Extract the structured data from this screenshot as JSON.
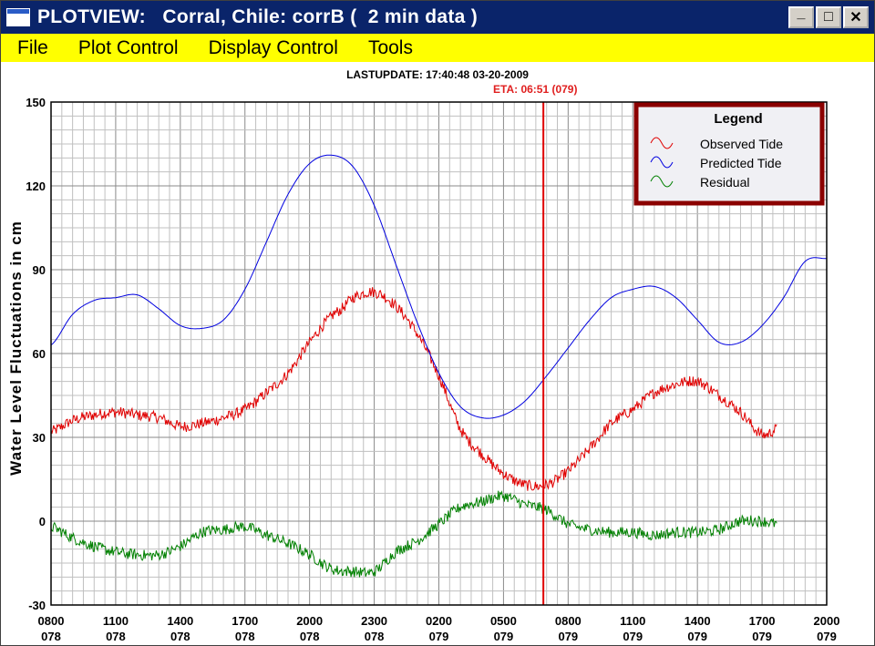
{
  "window": {
    "title": "PLOTVIEW:   Corral, Chile: corrB (  2 min data )",
    "minimize_glyph": "_",
    "maximize_glyph": "□",
    "close_glyph": "✕"
  },
  "menu": {
    "items": [
      "File",
      "Plot Control",
      "Display Control",
      "Tools"
    ]
  },
  "header": {
    "lastupdate": "LASTUPDATE: 17:40:48  03-20-2009",
    "eta": "ETA: 06:51 (079)"
  },
  "colors": {
    "observed": "#e00000",
    "predicted": "#0000e0",
    "residual": "#008000",
    "eta_line": "#e00000",
    "legend_border": "#8b0000",
    "legend_bg": "#f0f0f4"
  },
  "chart_data": {
    "type": "line",
    "ylabel": "Water Level Fluctuations in cm",
    "ylim": [
      -30,
      150
    ],
    "y_ticks": [
      -30,
      0,
      30,
      60,
      90,
      120,
      150
    ],
    "xlim": [
      0,
      36
    ],
    "x_ticks": [
      {
        "x": 0,
        "time": "0800",
        "day": "078"
      },
      {
        "x": 3,
        "time": "1100",
        "day": "078"
      },
      {
        "x": 6,
        "time": "1400",
        "day": "078"
      },
      {
        "x": 9,
        "time": "1700",
        "day": "078"
      },
      {
        "x": 12,
        "time": "2000",
        "day": "078"
      },
      {
        "x": 15,
        "time": "2300",
        "day": "078"
      },
      {
        "x": 18,
        "time": "0200",
        "day": "079"
      },
      {
        "x": 21,
        "time": "0500",
        "day": "079"
      },
      {
        "x": 24,
        "time": "0800",
        "day": "079"
      },
      {
        "x": 27,
        "time": "1100",
        "day": "079"
      },
      {
        "x": 30,
        "time": "1400",
        "day": "079"
      },
      {
        "x": 33,
        "time": "1700",
        "day": "079"
      },
      {
        "x": 36,
        "time": "2000",
        "day": "079"
      }
    ],
    "x_unit": "hours since 0800 day 078",
    "grid": true,
    "eta_x": 22.85,
    "legend": {
      "title": "Legend",
      "placement": "top-right"
    },
    "series": [
      {
        "name": "Observed Tide",
        "color_key": "observed",
        "noise": 2.0,
        "x": [
          0,
          1,
          2,
          3,
          4,
          5,
          6,
          7,
          8,
          9,
          10,
          11,
          12,
          13,
          13.5,
          14,
          15,
          16,
          17,
          18,
          19,
          20,
          21,
          22,
          23,
          24,
          25,
          26,
          27,
          28,
          29,
          30,
          31,
          32,
          33,
          33.7
        ],
        "y": [
          32,
          36,
          38,
          39,
          38,
          37,
          34,
          35,
          37,
          40,
          46,
          53,
          64,
          73,
          76,
          80,
          82,
          77,
          67,
          52,
          33,
          24,
          17,
          13,
          13,
          18,
          26,
          35,
          40,
          46,
          49,
          50,
          45,
          39,
          31,
          33
        ]
      },
      {
        "name": "Predicted Tide",
        "color_key": "predicted",
        "noise": 0,
        "x": [
          0,
          1,
          2,
          3,
          4,
          5,
          6,
          7,
          8,
          9,
          10,
          11,
          12,
          13,
          14,
          15,
          16,
          17,
          18,
          19,
          20,
          21,
          22,
          23,
          24,
          25,
          26,
          27,
          28,
          29,
          30,
          31,
          32,
          33,
          34,
          35,
          36
        ],
        "y": [
          63,
          74,
          79,
          80,
          81,
          76,
          70,
          69,
          72,
          83,
          100,
          117,
          128,
          131,
          127,
          113,
          92,
          71,
          53,
          41,
          37,
          38,
          43,
          52,
          62,
          72,
          80,
          83,
          84,
          80,
          72,
          64,
          64,
          70,
          80,
          93,
          94
        ]
      },
      {
        "name": "Residual",
        "color_key": "residual",
        "noise": 2.0,
        "x": [
          0,
          1,
          2,
          3,
          4,
          5,
          6,
          7,
          8,
          9,
          10,
          11,
          12,
          13,
          14,
          15,
          16,
          17,
          18,
          19,
          20,
          21,
          22,
          23,
          24,
          25,
          26,
          27,
          28,
          29,
          30,
          31,
          32,
          33,
          33.7
        ],
        "y": [
          -2,
          -6,
          -9,
          -11,
          -12,
          -12,
          -9,
          -4,
          -3,
          -2,
          -5,
          -8,
          -12,
          -17,
          -18,
          -18,
          -11,
          -7,
          -1,
          5,
          7,
          9,
          6,
          4,
          -1,
          -3,
          -4,
          -4,
          -5,
          -4,
          -4,
          -3,
          0,
          0,
          -1
        ]
      }
    ]
  }
}
